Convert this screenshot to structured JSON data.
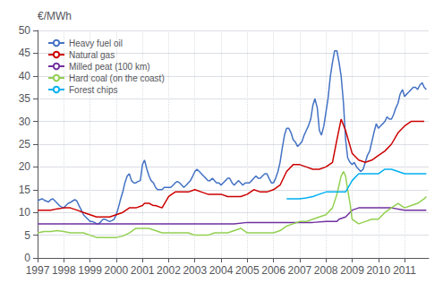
{
  "chart_data": {
    "type": "line",
    "ylabel": "€/MWh",
    "xlim": [
      1997,
      2011.92
    ],
    "xticks": [
      1997,
      1998,
      1999,
      2000,
      2001,
      2002,
      2003,
      2004,
      2005,
      2006,
      2007,
      2008,
      2009,
      2010,
      2011
    ],
    "ylim": [
      0,
      50
    ],
    "yticks": [
      0,
      5,
      10,
      15,
      20,
      25,
      30,
      35,
      40,
      45,
      50
    ],
    "grid": true,
    "legend": "upper left",
    "series": [
      {
        "name": "Heavy fuel oil",
        "color": "#4472C4",
        "x": [
          1997.0,
          1997.08,
          1997.17,
          1997.25,
          1997.33,
          1997.42,
          1997.5,
          1997.58,
          1997.67,
          1997.75,
          1997.83,
          1997.92,
          1998.0,
          1998.08,
          1998.17,
          1998.25,
          1998.33,
          1998.42,
          1998.5,
          1998.58,
          1998.67,
          1998.75,
          1998.83,
          1998.92,
          1999.0,
          1999.08,
          1999.17,
          1999.25,
          1999.33,
          1999.42,
          1999.5,
          1999.58,
          1999.67,
          1999.75,
          1999.83,
          1999.92,
          2000.0,
          2000.08,
          2000.17,
          2000.25,
          2000.33,
          2000.42,
          2000.5,
          2000.58,
          2000.67,
          2000.75,
          2000.83,
          2000.92,
          2001.0,
          2001.08,
          2001.17,
          2001.25,
          2001.33,
          2001.42,
          2001.5,
          2001.58,
          2001.67,
          2001.75,
          2001.83,
          2001.92,
          2002.0,
          2002.08,
          2002.17,
          2002.25,
          2002.33,
          2002.42,
          2002.5,
          2002.58,
          2002.67,
          2002.75,
          2002.83,
          2002.92,
          2003.0,
          2003.08,
          2003.17,
          2003.25,
          2003.33,
          2003.42,
          2003.5,
          2003.58,
          2003.67,
          2003.75,
          2003.83,
          2003.92,
          2004.0,
          2004.08,
          2004.17,
          2004.25,
          2004.33,
          2004.42,
          2004.5,
          2004.58,
          2004.67,
          2004.75,
          2004.83,
          2004.92,
          2005.0,
          2005.08,
          2005.17,
          2005.25,
          2005.33,
          2005.42,
          2005.5,
          2005.58,
          2005.67,
          2005.75,
          2005.83,
          2005.92,
          2006.0,
          2006.08,
          2006.17,
          2006.25,
          2006.33,
          2006.42,
          2006.5,
          2006.58,
          2006.67,
          2006.75,
          2006.83,
          2006.92,
          2007.0,
          2007.08,
          2007.17,
          2007.25,
          2007.33,
          2007.42,
          2007.5,
          2007.58,
          2007.67,
          2007.75,
          2007.83,
          2007.92,
          2008.0,
          2008.08,
          2008.17,
          2008.25,
          2008.33,
          2008.42,
          2008.5,
          2008.58,
          2008.67,
          2008.75,
          2008.83,
          2008.92,
          2009.0,
          2009.08,
          2009.17,
          2009.25,
          2009.33,
          2009.42,
          2009.5,
          2009.58,
          2009.67,
          2009.75,
          2009.83,
          2009.92,
          2010.0,
          2010.08,
          2010.17,
          2010.25,
          2010.33,
          2010.42,
          2010.5,
          2010.58,
          2010.67,
          2010.75,
          2010.83,
          2010.92,
          2011.0,
          2011.08,
          2011.17,
          2011.25,
          2011.33,
          2011.42,
          2011.5,
          2011.58,
          2011.67,
          2011.75,
          2011.83
        ],
        "values": [
          12.5,
          12.8,
          13.0,
          12.7,
          12.5,
          12.3,
          12.8,
          13.0,
          12.5,
          12.0,
          11.5,
          11.2,
          11.0,
          11.5,
          12.0,
          12.2,
          12.5,
          12.8,
          12.5,
          11.5,
          10.5,
          9.5,
          9.0,
          8.5,
          8.0,
          8.0,
          7.8,
          7.5,
          7.5,
          8.0,
          8.5,
          8.5,
          8.2,
          8.0,
          8.2,
          8.5,
          9.5,
          11.0,
          13.0,
          14.5,
          16.5,
          18.0,
          18.5,
          17.0,
          16.5,
          16.5,
          16.8,
          17.0,
          20.5,
          21.5,
          19.5,
          18.0,
          17.0,
          16.5,
          15.5,
          15.0,
          15.0,
          15.0,
          15.5,
          15.5,
          15.5,
          15.5,
          16.0,
          16.5,
          16.8,
          16.5,
          16.0,
          15.5,
          16.0,
          16.5,
          17.0,
          18.0,
          19.0,
          19.5,
          19.0,
          18.5,
          18.0,
          17.5,
          17.0,
          17.0,
          17.5,
          17.0,
          16.5,
          16.5,
          16.0,
          16.5,
          17.0,
          17.5,
          17.5,
          16.5,
          16.0,
          16.5,
          17.0,
          16.5,
          16.0,
          16.5,
          16.5,
          16.5,
          17.0,
          17.5,
          18.0,
          17.5,
          17.5,
          18.0,
          18.5,
          18.5,
          17.5,
          16.5,
          16.5,
          17.5,
          19.0,
          21.0,
          24.0,
          27.0,
          28.5,
          28.5,
          27.5,
          26.0,
          25.5,
          24.5,
          25.0,
          25.5,
          27.0,
          28.0,
          29.0,
          30.5,
          33.5,
          35.0,
          33.0,
          28.0,
          27.0,
          29.0,
          32.0,
          35.0,
          40.0,
          43.0,
          45.5,
          45.5,
          43.0,
          40.0,
          34.0,
          26.0,
          22.0,
          21.0,
          20.5,
          21.0,
          20.0,
          19.5,
          19.0,
          19.5,
          21.0,
          22.5,
          23.5,
          25.5,
          27.5,
          29.5,
          28.5,
          29.0,
          29.5,
          30.0,
          31.0,
          30.5,
          30.5,
          31.5,
          33.0,
          34.0,
          36.0,
          37.0,
          35.5,
          36.0,
          36.5,
          37.0,
          37.5,
          37.5,
          37.0,
          38.0,
          38.5,
          37.5,
          37.0
        ]
      },
      {
        "name": "Natural gas",
        "color": "#CC0000",
        "x": [
          1997.0,
          1997.25,
          1997.5,
          1997.75,
          1998.0,
          1998.25,
          1998.5,
          1998.75,
          1999.0,
          1999.25,
          1999.5,
          1999.75,
          2000.0,
          2000.25,
          2000.5,
          2000.75,
          2001.0,
          2001.08,
          2001.25,
          2001.42,
          2001.5,
          2001.75,
          2002.0,
          2002.25,
          2002.5,
          2002.75,
          2003.0,
          2003.25,
          2003.5,
          2003.75,
          2004.0,
          2004.25,
          2004.5,
          2004.75,
          2005.0,
          2005.25,
          2005.5,
          2005.75,
          2006.0,
          2006.25,
          2006.5,
          2006.75,
          2007.0,
          2007.25,
          2007.5,
          2007.75,
          2008.0,
          2008.25,
          2008.42,
          2008.58,
          2008.75,
          2009.0,
          2009.25,
          2009.5,
          2009.75,
          2010.0,
          2010.25,
          2010.5,
          2010.75,
          2011.0,
          2011.25,
          2011.5,
          2011.75
        ],
        "values": [
          10.5,
          10.5,
          10.5,
          10.8,
          11.0,
          11.0,
          10.5,
          10.0,
          9.5,
          9.0,
          9.0,
          9.0,
          9.5,
          10.0,
          11.0,
          11.0,
          11.5,
          12.0,
          12.0,
          11.5,
          11.5,
          11.0,
          13.5,
          14.5,
          14.5,
          14.5,
          15.0,
          14.5,
          14.0,
          14.0,
          14.0,
          13.5,
          13.5,
          13.5,
          14.0,
          15.0,
          14.5,
          14.5,
          15.0,
          16.0,
          19.0,
          20.5,
          20.5,
          20.0,
          19.5,
          19.5,
          20.0,
          21.0,
          26.0,
          30.5,
          28.0,
          23.0,
          21.5,
          21.0,
          21.5,
          22.5,
          23.5,
          25.0,
          27.5,
          29.0,
          30.0,
          30.0,
          30.0
        ]
      },
      {
        "name": "Milled peat (100 km)",
        "color": "#7030A0",
        "x": [
          1997.0,
          1997.5,
          1998.0,
          1998.5,
          1999.0,
          1999.5,
          2000.0,
          2000.5,
          2001.0,
          2001.5,
          2002.0,
          2002.5,
          2003.0,
          2003.5,
          2004.0,
          2004.5,
          2005.0,
          2005.5,
          2006.0,
          2006.5,
          2007.0,
          2007.5,
          2008.0,
          2008.42,
          2008.5,
          2008.75,
          2009.0,
          2009.25,
          2009.5,
          2009.75,
          2010.0,
          2010.5,
          2011.0,
          2011.5,
          2011.83
        ],
        "values": [
          7.5,
          7.5,
          7.5,
          7.5,
          7.5,
          7.5,
          7.5,
          7.5,
          7.5,
          7.5,
          7.5,
          7.5,
          7.5,
          7.5,
          7.5,
          7.5,
          7.8,
          7.8,
          7.8,
          7.8,
          7.8,
          7.8,
          8.0,
          8.0,
          8.5,
          9.0,
          10.5,
          11.0,
          11.0,
          11.0,
          11.0,
          11.0,
          10.5,
          10.5,
          10.5
        ]
      },
      {
        "name": "Hard coal (on the coast)",
        "color": "#92D050",
        "x": [
          1997.0,
          1997.25,
          1997.5,
          1997.75,
          1998.0,
          1998.25,
          1998.5,
          1998.75,
          1999.0,
          1999.25,
          1999.5,
          1999.75,
          2000.0,
          2000.25,
          2000.5,
          2000.75,
          2001.0,
          2001.25,
          2001.5,
          2001.75,
          2002.0,
          2002.25,
          2002.5,
          2002.75,
          2003.0,
          2003.25,
          2003.5,
          2003.75,
          2004.0,
          2004.25,
          2004.5,
          2004.75,
          2005.0,
          2005.25,
          2005.5,
          2005.75,
          2006.0,
          2006.25,
          2006.5,
          2006.75,
          2007.0,
          2007.25,
          2007.5,
          2007.75,
          2008.0,
          2008.25,
          2008.42,
          2008.5,
          2008.58,
          2008.67,
          2008.75,
          2008.83,
          2008.92,
          2009.0,
          2009.25,
          2009.5,
          2009.75,
          2010.0,
          2010.25,
          2010.5,
          2010.75,
          2011.0,
          2011.25,
          2011.5,
          2011.75,
          2011.83
        ],
        "values": [
          5.5,
          5.8,
          5.8,
          6.0,
          5.8,
          5.5,
          5.5,
          5.5,
          5.0,
          4.5,
          4.5,
          4.5,
          4.5,
          4.8,
          5.5,
          6.5,
          6.5,
          6.5,
          6.0,
          5.5,
          5.5,
          5.5,
          5.5,
          5.5,
          5.0,
          5.0,
          5.0,
          5.5,
          5.5,
          5.5,
          6.0,
          6.5,
          5.5,
          5.5,
          5.5,
          5.5,
          5.5,
          6.0,
          7.0,
          7.5,
          8.0,
          8.0,
          8.5,
          9.0,
          9.5,
          11.0,
          14.0,
          16.0,
          18.0,
          19.0,
          18.0,
          15.0,
          12.0,
          8.5,
          7.5,
          8.0,
          8.5,
          8.5,
          10.0,
          11.0,
          12.0,
          11.0,
          11.5,
          12.0,
          13.0,
          13.5
        ]
      },
      {
        "name": "Forest chips",
        "color": "#00B0F0",
        "x": [
          2006.5,
          2006.75,
          2007.0,
          2007.25,
          2007.5,
          2007.75,
          2008.0,
          2008.25,
          2008.5,
          2008.75,
          2009.0,
          2009.25,
          2009.5,
          2009.75,
          2010.0,
          2010.25,
          2010.5,
          2010.75,
          2011.0,
          2011.25,
          2011.5,
          2011.75,
          2011.83
        ],
        "values": [
          13.0,
          13.0,
          13.0,
          13.2,
          13.5,
          14.0,
          14.5,
          14.5,
          14.5,
          14.5,
          17.0,
          18.5,
          18.5,
          18.5,
          18.5,
          19.5,
          19.5,
          19.0,
          18.5,
          18.5,
          18.5,
          18.5,
          18.5
        ]
      }
    ]
  }
}
